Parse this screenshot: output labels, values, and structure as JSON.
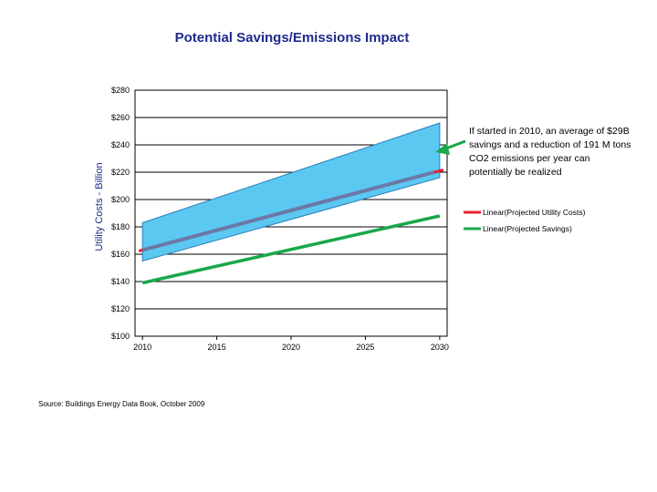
{
  "chart_data": {
    "type": "line",
    "title": "Potential Savings/Emissions Impact",
    "ylabel": "Utility Costs - Billion",
    "xlabel": "",
    "xlim": [
      2009.5,
      2030.5
    ],
    "ylim": [
      100,
      280
    ],
    "y_ticks": [
      100,
      120,
      140,
      160,
      180,
      200,
      220,
      240,
      260,
      280
    ],
    "y_tick_labels": [
      "$100",
      "$120",
      "$140",
      "$160",
      "$180",
      "$200",
      "$220",
      "$240",
      "$260",
      "$280"
    ],
    "x_ticks": [
      2010,
      2015,
      2020,
      2025,
      2030
    ],
    "x_tick_labels": [
      "2010",
      "2015",
      "2020",
      "2025",
      "2030"
    ],
    "grid": "horizontal",
    "legend_position": "right",
    "band": {
      "x": [
        2010,
        2030
      ],
      "upper": [
        183,
        256
      ],
      "lower": [
        155,
        216
      ],
      "color": "#5bc8f2"
    },
    "series": [
      {
        "name": "Linear(Projected Utility Costs)",
        "x": [
          2010,
          2030
        ],
        "y": [
          163,
          221
        ],
        "color": "#e8222b",
        "trend_color": "#6b78a6"
      },
      {
        "name": "Linear(Projected Savings)",
        "x": [
          2010,
          2030
        ],
        "y": [
          139,
          188
        ],
        "color": "#1aa84a"
      }
    ],
    "annotation": {
      "text": "If started in 2010, an average of $29B savings and a reduction of 191 M tons CO2 emissions per year can potentially be realized",
      "arrow_color": "#1aa84a"
    }
  },
  "source": "Source: Buildings Energy Data Book, October 2009"
}
